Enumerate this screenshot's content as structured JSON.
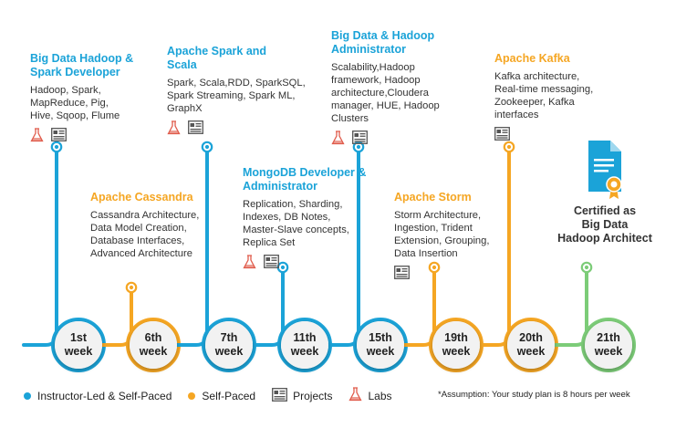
{
  "colors": {
    "blue": "#1ba3d8",
    "orange": "#f5a623",
    "green": "#7ccc78",
    "lab_red": "#e05a4a",
    "gray_icon": "#555555"
  },
  "courses": [
    {
      "week": "1st\nweek",
      "title": "Big Data Hadoop &\nSpark Developer",
      "desc": "Hadoop, Spark,\nMapReduce, Pig,\nHive, Sqoop, Flume",
      "type": "instructor",
      "icons": [
        "labs-icon",
        "projects-icon"
      ],
      "position": "top"
    },
    {
      "week": "6th\nweek",
      "title": "Apache Cassandra",
      "desc": "Cassandra Architecture,\nData Model Creation,\nDatabase Interfaces,\nAdvanced Architecture",
      "type": "self",
      "icons": [],
      "position": "bottom"
    },
    {
      "week": "7th\nweek",
      "title": "Apache Spark and\nScala",
      "desc": "Spark, Scala,RDD, SparkSQL,\nSpark Streaming, Spark ML,\nGraphX",
      "type": "instructor",
      "icons": [
        "labs-icon",
        "projects-icon"
      ],
      "position": "top"
    },
    {
      "week": "11th\nweek",
      "title": "MongoDB Developer &\nAdministrator",
      "desc": "Replication, Sharding,\nIndexes, DB Notes,\nMaster-Slave concepts,\nReplica Set",
      "type": "instructor",
      "icons": [
        "labs-icon",
        "projects-icon"
      ],
      "position": "bottom"
    },
    {
      "week": "15th\nweek",
      "title": "Big Data & Hadoop\nAdministrator",
      "desc": "Scalability,Hadoop\nframework, Hadoop\narchitecture,Cloudera\nmanager, HUE, Hadoop\nClusters",
      "type": "instructor",
      "icons": [
        "labs-icon",
        "projects-icon"
      ],
      "position": "top"
    },
    {
      "week": "19th\nweek",
      "title": "Apache Storm",
      "desc": "Storm Architecture,\nIngestion, Trident\nExtension, Grouping,\nData Insertion",
      "type": "self",
      "icons": [
        "projects-icon"
      ],
      "position": "bottom"
    },
    {
      "week": "20th\nweek",
      "title": "Apache Kafka",
      "desc": "Kafka architecture,\nReal-time messaging,\nZookeeper, Kafka\ninterfaces",
      "type": "self",
      "icons": [
        "projects-icon"
      ],
      "position": "top"
    },
    {
      "week": "21th\nweek",
      "title": "",
      "desc": "",
      "type": "final",
      "icons": [],
      "position": "bottom"
    }
  ],
  "certificate": {
    "text": "Certified as\nBig Data\nHadoop Architect"
  },
  "legend": {
    "instructor": "Instructor-Led & Self-Paced",
    "self": "Self-Paced",
    "projects": "Projects",
    "labs": "Labs"
  },
  "assumption": "*Assumption: Your study plan is 8 hours per week"
}
